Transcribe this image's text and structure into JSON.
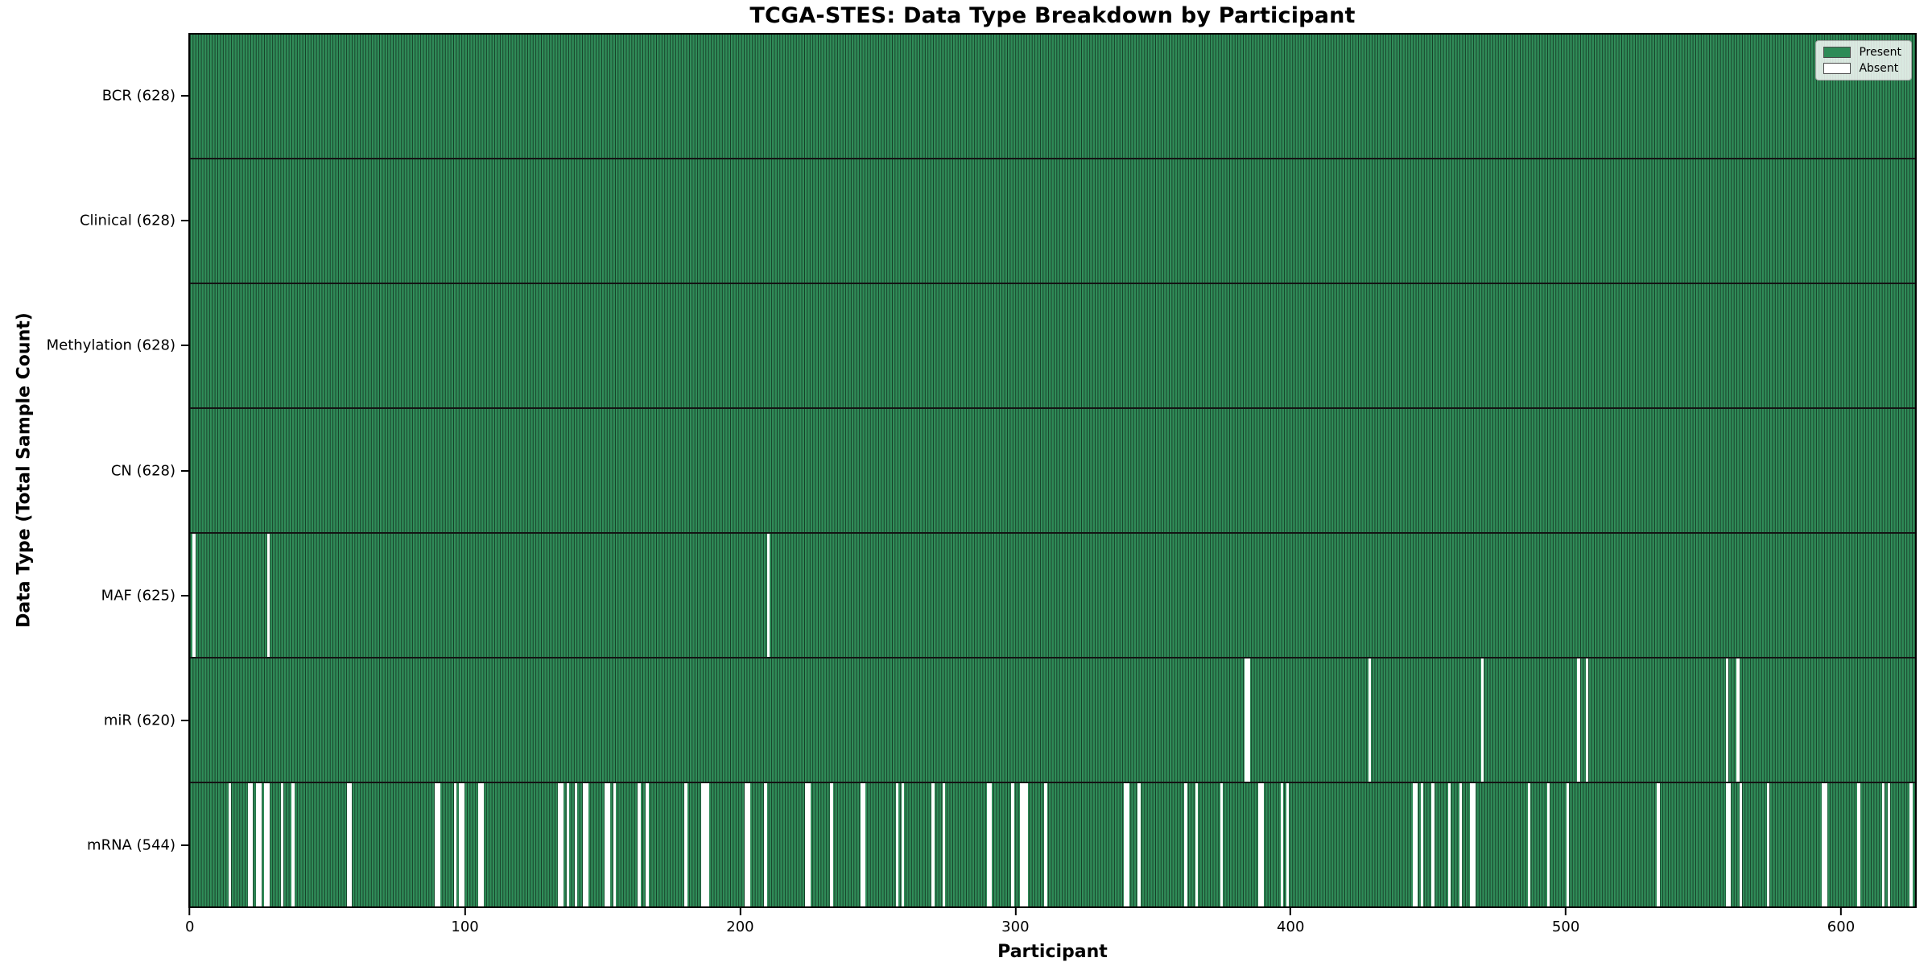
{
  "chart_data": {
    "type": "heatmap",
    "title": "TCGA-STES: Data Type Breakdown by Participant",
    "xlabel": "Participant",
    "ylabel": "Data Type (Total Sample Count)",
    "x_ticks": [
      0,
      100,
      200,
      300,
      400,
      500,
      600
    ],
    "n_participants": 628,
    "grid": false,
    "legend_position": "upper right",
    "colors": {
      "present": "#2e8b57",
      "absent": "#ffffff"
    },
    "legend": [
      {
        "label": "Present",
        "color": "#2e8b57"
      },
      {
        "label": "Absent",
        "color": "#ffffff"
      }
    ],
    "rows": [
      {
        "label": "BCR (628)",
        "data_type": "BCR",
        "present_count": 628,
        "absent_participants": []
      },
      {
        "label": "Clinical (628)",
        "data_type": "Clinical",
        "present_count": 628,
        "absent_participants": []
      },
      {
        "label": "Methylation (628)",
        "data_type": "Methylation",
        "present_count": 628,
        "absent_participants": []
      },
      {
        "label": "CN (628)",
        "data_type": "CN",
        "present_count": 628,
        "absent_participants": []
      },
      {
        "label": "MAF (625)",
        "data_type": "MAF",
        "present_count": 625,
        "absent_participants": [
          1,
          28,
          210
        ]
      },
      {
        "label": "miR (620)",
        "data_type": "miR",
        "present_count": 620,
        "absent_participants": [
          384,
          385,
          429,
          470,
          505,
          508,
          559,
          563
        ]
      },
      {
        "label": "mRNA (544)",
        "data_type": "mRNA",
        "present_count": 544,
        "absent_participants": [
          14,
          21,
          22,
          24,
          25,
          27,
          28,
          33,
          37,
          57,
          58,
          89,
          90,
          96,
          98,
          99,
          105,
          106,
          134,
          135,
          137,
          140,
          143,
          144,
          151,
          152,
          154,
          163,
          166,
          180,
          186,
          187,
          188,
          202,
          203,
          209,
          224,
          225,
          233,
          244,
          245,
          257,
          259,
          270,
          274,
          290,
          291,
          299,
          302,
          303,
          304,
          311,
          340,
          341,
          345,
          362,
          366,
          375,
          389,
          390,
          397,
          399,
          445,
          446,
          448,
          452,
          458,
          462,
          466,
          467,
          487,
          494,
          501,
          534,
          559,
          560,
          564,
          574,
          594,
          595,
          607,
          616,
          618,
          626
        ]
      }
    ]
  }
}
